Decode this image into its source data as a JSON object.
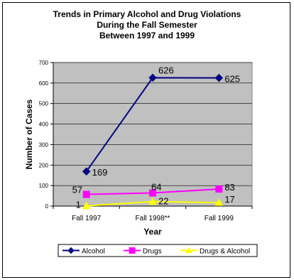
{
  "chart_data": {
    "type": "line",
    "title": [
      "Trends in Primary Alcohol and Drug Violations",
      "During the Fall Semester",
      "Between 1997 and 1999"
    ],
    "xlabel": "Year",
    "ylabel": "Number of Cases",
    "categories": [
      "Fall 1997",
      "Fall 1998**",
      "Fall 1999"
    ],
    "ylim": [
      0,
      700
    ],
    "yticks": [
      0,
      100,
      200,
      300,
      400,
      500,
      600,
      700
    ],
    "grid": true,
    "legend": "bottom",
    "series": [
      {
        "name": "Alcohol",
        "values": [
          169,
          626,
          625
        ],
        "color": "#000080",
        "marker": "diamond",
        "labels": [
          "169",
          "626",
          "625"
        ]
      },
      {
        "name": "Drugs",
        "values": [
          57,
          64,
          83
        ],
        "color": "#ff00ff",
        "marker": "square",
        "labels": [
          "57",
          "64",
          "83"
        ]
      },
      {
        "name": "Drugs & Alcohol",
        "values": [
          1,
          22,
          17
        ],
        "color": "#ffff00",
        "marker": "triangle",
        "labels": [
          "1",
          "22",
          "17"
        ]
      }
    ]
  }
}
